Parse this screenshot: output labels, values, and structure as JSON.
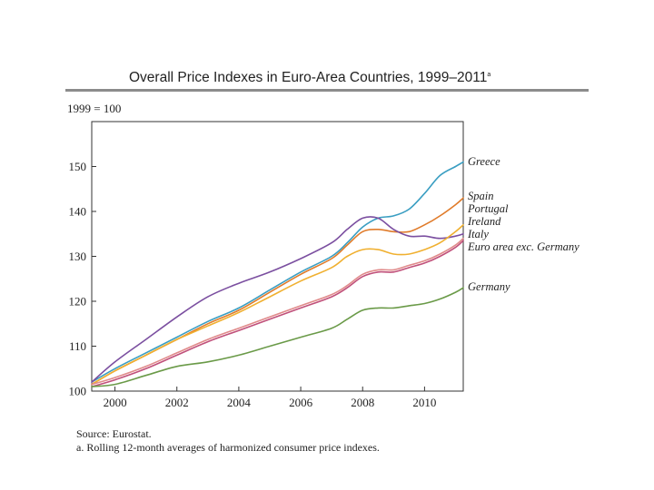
{
  "chart_data": {
    "type": "line",
    "title": "Overall Price Indexes in Euro-Area Countries, 1999–2011",
    "title_note_marker": "a",
    "unit_label": "1999 = 100",
    "xlabel": "",
    "ylabel": "",
    "xlim": [
      1999.25,
      2011.25
    ],
    "ylim": [
      100,
      160
    ],
    "x_ticks": [
      2000,
      2002,
      2004,
      2006,
      2008,
      2010
    ],
    "x_tick_labels": [
      "2000",
      "2002",
      "2004",
      "2006",
      "2008",
      "2010"
    ],
    "y_ticks": [
      100,
      110,
      120,
      130,
      140,
      150
    ],
    "y_tick_labels": [
      "100",
      "110",
      "120",
      "130",
      "140",
      "150"
    ],
    "grid": false,
    "legend_placement": "right, labels at line ends",
    "x": [
      1999.25,
      2000.0,
      2001.0,
      2002.0,
      2003.0,
      2004.0,
      2005.0,
      2006.0,
      2007.0,
      2007.5,
      2008.0,
      2008.5,
      2009.0,
      2009.5,
      2010.0,
      2010.5,
      2011.0,
      2011.25
    ],
    "series": [
      {
        "name": "Greece",
        "color": "#3a9ec2",
        "values": [
          102,
          105,
          108.5,
          112,
          115.5,
          118.5,
          122.5,
          126.5,
          130,
          133,
          136.5,
          138.5,
          139,
          140.5,
          144,
          148,
          150,
          151
        ]
      },
      {
        "name": "Spain",
        "color": "#e07b2a",
        "values": [
          101.5,
          104.5,
          108,
          111.5,
          115,
          118,
          122,
          126,
          129.5,
          132.5,
          135.5,
          136,
          135.5,
          135.5,
          137,
          139,
          141.5,
          143
        ]
      },
      {
        "name": "Portugal",
        "color": "#7b4fa0",
        "values": [
          102,
          106.5,
          111.5,
          116.5,
          121,
          124,
          126.5,
          129.5,
          133,
          136,
          138.5,
          138.5,
          136,
          134.5,
          134.5,
          134,
          134.5,
          135
        ]
      },
      {
        "name": "Ireland",
        "color": "#f0b030",
        "values": [
          101.5,
          104.5,
          108,
          111.5,
          114.5,
          117.5,
          121,
          124.5,
          127.5,
          130,
          131.5,
          131.5,
          130.5,
          130.5,
          131.5,
          133,
          135.5,
          137
        ]
      },
      {
        "name": "Italy",
        "color": "#e08a8a",
        "values": [
          101.5,
          103,
          105.5,
          108.5,
          111.5,
          114,
          116.5,
          119,
          121.5,
          123.5,
          126,
          127,
          127,
          128,
          129,
          130.5,
          132.5,
          134
        ]
      },
      {
        "name": "Euro area exc. Germany",
        "color": "#c0507a",
        "values": [
          101,
          102.5,
          105,
          108,
          111,
          113.5,
          116,
          118.5,
          121,
          123,
          125.5,
          126.5,
          126.5,
          127.5,
          128.5,
          130,
          132,
          133.5
        ]
      },
      {
        "name": "Germany",
        "color": "#6a9a48",
        "values": [
          101,
          101.5,
          103.5,
          105.5,
          106.5,
          108,
          110,
          112,
          114,
          116,
          118,
          118.5,
          118.5,
          119,
          119.5,
          120.5,
          122,
          123
        ]
      }
    ]
  },
  "notes": {
    "source": "Source: Eurostat.",
    "footnote": "a. Rolling 12-month averages of harmonized consumer price indexes."
  }
}
